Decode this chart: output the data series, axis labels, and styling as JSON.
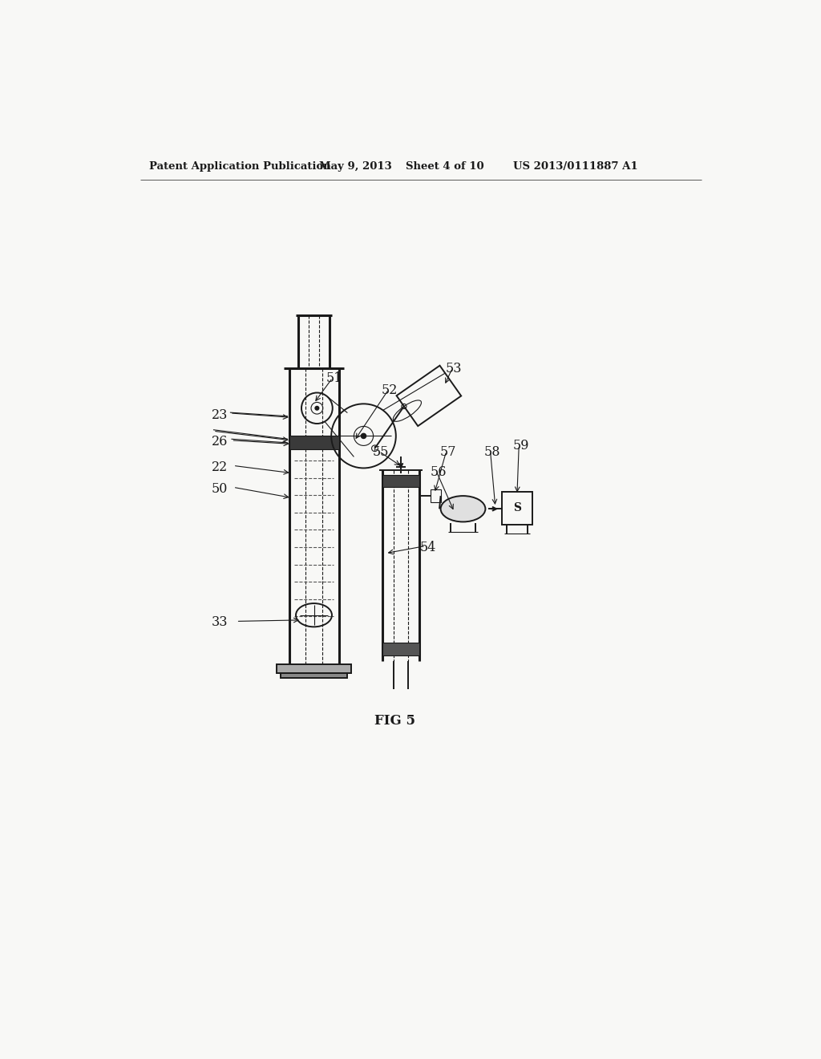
{
  "background_color": "#f8f8f6",
  "header_text1": "Patent Application Publication",
  "header_text2": "May 9, 2013",
  "header_text3": "Sheet 4 of 10",
  "header_text4": "US 2013/0111887 A1",
  "fig_label": "FIG 5",
  "line_color": "#1a1a1a",
  "lw_main": 1.4,
  "lw_thick": 2.2,
  "lw_thin": 0.8,
  "lw_hatch": 1.8
}
